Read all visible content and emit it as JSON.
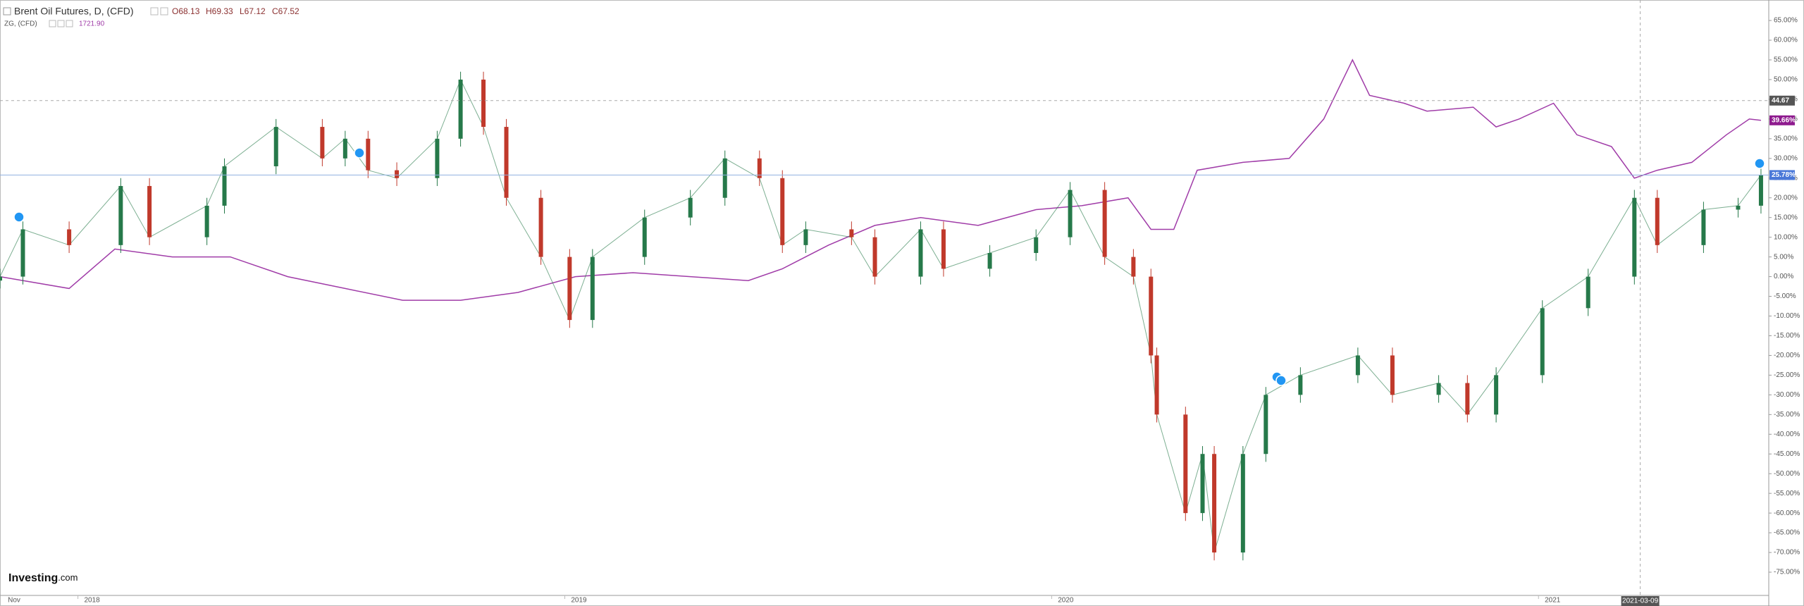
{
  "chart_data": {
    "type": "candlestick",
    "title": "Brent Oil Futures, D, (CFD)",
    "ohlc_legend": [
      "O68.13",
      "H69.33",
      "L67.12",
      "C67.52"
    ],
    "compare_title": "ZG, (CFD)",
    "compare_legend": "1721.90",
    "watermark": "Investing",
    "watermark_suffix": ".com",
    "xlim": [
      2017.811,
      2021.444
    ],
    "xticks": [
      {
        "value": 2017.84,
        "label": "Nov"
      },
      2018,
      2019,
      2020,
      2021
    ],
    "ylim": [
      -80.9,
      70.2
    ],
    "yticks": [
      {
        "value": 65,
        "label": "65.00%"
      },
      {
        "value": 60,
        "label": "60.00%"
      },
      {
        "value": 55,
        "label": "55.00%"
      },
      {
        "value": 50,
        "label": "50.00%"
      },
      {
        "value": 45,
        "label": "45.00%"
      },
      {
        "value": 40,
        "label": "40.00%"
      },
      {
        "value": 35,
        "label": "35.00%"
      },
      {
        "value": 30,
        "label": "30.00%"
      },
      {
        "value": 25,
        "label": "25.00%"
      },
      {
        "value": 20,
        "label": "20.00%"
      },
      {
        "value": 15,
        "label": "15.00%"
      },
      {
        "value": 10,
        "label": "10.00%"
      },
      {
        "value": 5,
        "label": "5.00%"
      },
      {
        "value": 0,
        "label": "0.00%"
      },
      {
        "value": -5,
        "label": "-5.00%"
      },
      {
        "value": -10,
        "label": "-10.00%"
      },
      {
        "value": -15,
        "label": "-15.00%"
      },
      {
        "value": -20,
        "label": "-20.00%"
      },
      {
        "value": -25,
        "label": "-25.00%"
      },
      {
        "value": -30,
        "label": "-30.00%"
      },
      {
        "value": -35,
        "label": "-35.00%"
      },
      {
        "value": -40,
        "label": "-40.00%"
      },
      {
        "value": -45,
        "label": "-45.00%"
      },
      {
        "value": -50,
        "label": "-50.00%"
      },
      {
        "value": -55,
        "label": "-55.00%"
      },
      {
        "value": -60,
        "label": "-60.00%"
      },
      {
        "value": -65,
        "label": "-65.00%"
      },
      {
        "value": -70,
        "label": "-70.00%"
      },
      {
        "value": -75,
        "label": "-75.00%"
      }
    ],
    "crosshair": {
      "x": {
        "value": 2021.18,
        "label": "2021-03-09"
      },
      "y": {
        "value": 44.67,
        "label": "44.67"
      }
    },
    "brent": {
      "name": "Brent Oil Futures",
      "up_color": "#26794a",
      "down_color": "#c0392b",
      "last": {
        "value": 25.78,
        "label": "25.78%"
      },
      "x": [
        2017.811,
        2017.858,
        2017.953,
        2018.059,
        2018.118,
        2018.236,
        2018.272,
        2018.378,
        2018.473,
        2018.52,
        2018.567,
        2018.626,
        2018.709,
        2018.757,
        2018.804,
        2018.851,
        2018.922,
        2018.981,
        2019.028,
        2019.135,
        2019.229,
        2019.3,
        2019.371,
        2019.418,
        2019.466,
        2019.56,
        2019.608,
        2019.702,
        2019.749,
        2019.844,
        2019.939,
        2020.009,
        2020.08,
        2020.139,
        2020.175,
        2020.187,
        2020.246,
        2020.281,
        2020.305,
        2020.364,
        2020.411,
        2020.482,
        2020.6,
        2020.671,
        2020.766,
        2020.825,
        2020.884,
        2020.979,
        2021.073,
        2021.168,
        2021.215,
        2021.31,
        2021.381,
        2021.428
      ],
      "open": [
        -1,
        0,
        12,
        8,
        23,
        10,
        18,
        28,
        38,
        30,
        35,
        27,
        25,
        35,
        50,
        38,
        20,
        5,
        -11,
        5,
        15,
        20,
        30,
        25,
        8,
        12,
        10,
        0,
        12,
        2,
        6,
        10,
        22,
        5,
        0,
        -20,
        -35,
        -60,
        -45,
        -70,
        -45,
        -30,
        -25,
        -20,
        -30,
        -27,
        -35,
        -25,
        -8,
        0,
        20,
        8,
        17,
        18
      ],
      "high": [
        2,
        14,
        14,
        25,
        25,
        20,
        30,
        40,
        40,
        37,
        37,
        29,
        37,
        52,
        52,
        40,
        22,
        7,
        7,
        17,
        22,
        32,
        32,
        27,
        14,
        14,
        12,
        14,
        14,
        8,
        12,
        24,
        24,
        7,
        2,
        -18,
        -33,
        -43,
        -43,
        -43,
        -28,
        -23,
        -18,
        -18,
        -25,
        -25,
        -23,
        -6,
        2,
        22,
        22,
        19,
        20,
        27.78
      ],
      "low": [
        -3,
        -2,
        6,
        6,
        8,
        8,
        16,
        26,
        28,
        28,
        25,
        23,
        23,
        33,
        36,
        18,
        3,
        -13,
        -13,
        3,
        13,
        18,
        23,
        6,
        6,
        8,
        -2,
        -2,
        0,
        0,
        4,
        8,
        3,
        -2,
        -22,
        -37,
        -62,
        -62,
        -72,
        -72,
        -47,
        -32,
        -27,
        -32,
        -32,
        -37,
        -37,
        -27,
        -10,
        -2,
        6,
        6,
        15,
        16
      ],
      "close": [
        0,
        12,
        8,
        23,
        10,
        18,
        28,
        38,
        30,
        35,
        27,
        25,
        35,
        50,
        38,
        20,
        5,
        -11,
        5,
        15,
        20,
        30,
        25,
        8,
        12,
        10,
        0,
        12,
        2,
        6,
        10,
        22,
        5,
        0,
        -20,
        -35,
        -60,
        -45,
        -70,
        -45,
        -30,
        -25,
        -20,
        -30,
        -27,
        -35,
        -25,
        -8,
        0,
        20,
        8,
        17,
        18,
        25.78
      ]
    },
    "gold": {
      "name": "ZG",
      "color": "#a03ca8",
      "last": {
        "value": 39.66,
        "label": "39.66%"
      },
      "x": [
        2017.811,
        2017.953,
        2018.047,
        2018.165,
        2018.284,
        2018.402,
        2018.52,
        2018.638,
        2018.757,
        2018.875,
        2018.993,
        2019.111,
        2019.229,
        2019.348,
        2019.418,
        2019.513,
        2019.608,
        2019.702,
        2019.82,
        2019.939,
        2020.033,
        2020.128,
        2020.175,
        2020.222,
        2020.27,
        2020.364,
        2020.459,
        2020.53,
        2020.589,
        2020.624,
        2020.695,
        2020.742,
        2020.837,
        2020.884,
        2020.931,
        2021.002,
        2021.05,
        2021.121,
        2021.168,
        2021.215,
        2021.286,
        2021.357,
        2021.404,
        2021.428
      ],
      "values": [
        0,
        -3,
        7,
        5,
        5,
        0,
        -3,
        -6,
        -6,
        -4,
        0,
        1,
        0,
        -1,
        2,
        8,
        13,
        15,
        13,
        17,
        18,
        20,
        12,
        12,
        27,
        29,
        30,
        40,
        55,
        46,
        44,
        42,
        43,
        38,
        40,
        44,
        36,
        33,
        25,
        27,
        29,
        36,
        40,
        39.66
      ]
    }
  }
}
